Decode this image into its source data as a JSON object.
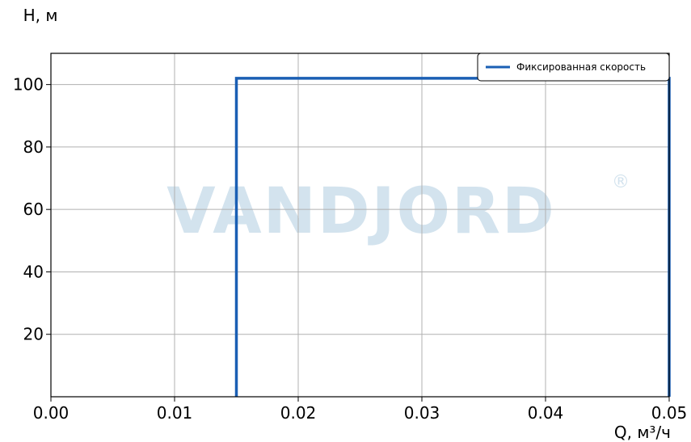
{
  "chart_data": {
    "type": "line",
    "title": "",
    "xlabel": "Q, м³/ч",
    "ylabel": "H, м",
    "xlim": [
      0.0,
      0.05
    ],
    "ylim": [
      0,
      110
    ],
    "x_ticks": [
      0.0,
      0.01,
      0.02,
      0.03,
      0.04,
      0.05
    ],
    "x_tick_labels": [
      "0.00",
      "0.01",
      "0.02",
      "0.03",
      "0.04",
      "0.05"
    ],
    "y_ticks": [
      20,
      40,
      60,
      80,
      100
    ],
    "y_tick_labels": [
      "20",
      "40",
      "60",
      "80",
      "100"
    ],
    "grid": true,
    "legend_position": "top-right",
    "series": [
      {
        "name": "Фиксированная скорость",
        "color": "#1a5fb4",
        "points": [
          [
            0.015,
            0
          ],
          [
            0.015,
            102
          ],
          [
            0.05,
            102
          ],
          [
            0.05,
            0
          ]
        ]
      }
    ]
  },
  "watermark": {
    "text": "VANDJORD",
    "mark": "®",
    "color": "#d3e3ee"
  }
}
